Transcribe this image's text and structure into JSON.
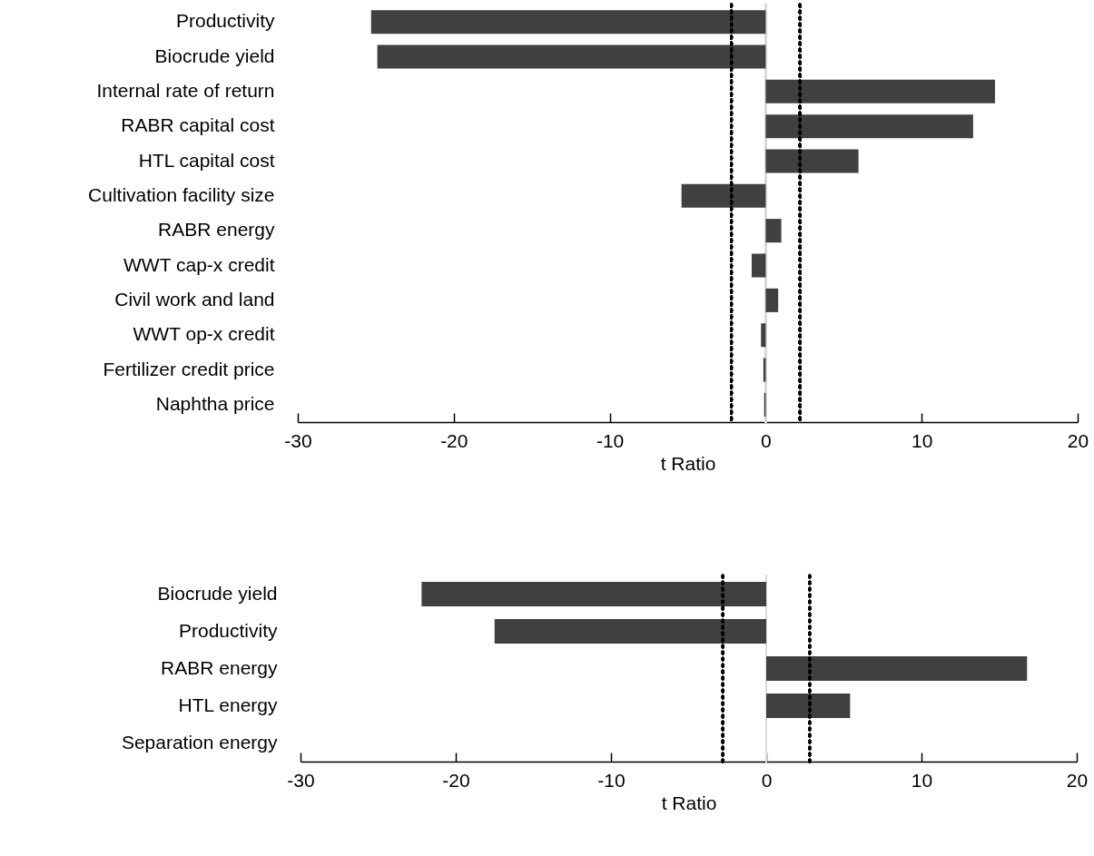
{
  "chart_data": [
    {
      "type": "bar",
      "orientation": "horizontal",
      "categories": [
        "Productivity",
        "Biocrude yield",
        "Internal rate of return",
        "RABR capital cost",
        "HTL capital cost",
        "Cultivation facility size",
        "RABR energy",
        "WWT cap-x credit",
        "Civil work and land",
        "WWT op-x credit",
        "Fertilizer credit price",
        "Naphtha price"
      ],
      "values": [
        -25.3,
        -24.9,
        14.7,
        13.3,
        5.95,
        -5.4,
        1.0,
        -0.9,
        0.8,
        -0.3,
        -0.15,
        -0.1
      ],
      "color": "#404040",
      "xlabel": "t Ratio",
      "xlim": [
        -30,
        20
      ],
      "xticks": [
        -30,
        -20,
        -10,
        0,
        10,
        20
      ],
      "grid": false,
      "ref_lines": [
        {
          "axis": "x",
          "value": 0,
          "color": "#d9d9d9",
          "line_style": "solid"
        },
        {
          "axis": "x",
          "value": -2.2,
          "color": "#000000",
          "line_style": "dotted"
        },
        {
          "axis": "x",
          "value": 2.2,
          "color": "#000000",
          "line_style": "dotted"
        }
      ]
    },
    {
      "type": "bar",
      "orientation": "horizontal",
      "categories": [
        "Biocrude yield",
        "Productivity",
        "RABR energy",
        "HTL energy",
        "Separation energy"
      ],
      "values": [
        -22.2,
        -17.5,
        16.8,
        5.4,
        0
      ],
      "color": "#404040",
      "xlabel": "t Ratio",
      "xlim": [
        -30,
        20
      ],
      "xticks": [
        -30,
        -20,
        -10,
        0,
        10,
        20
      ],
      "grid": false,
      "ref_lines": [
        {
          "axis": "x",
          "value": 0,
          "color": "#d9d9d9",
          "line_style": "solid"
        },
        {
          "axis": "x",
          "value": -2.8,
          "color": "#000000",
          "line_style": "dotted"
        },
        {
          "axis": "x",
          "value": 2.8,
          "color": "#000000",
          "line_style": "dotted"
        }
      ]
    }
  ]
}
